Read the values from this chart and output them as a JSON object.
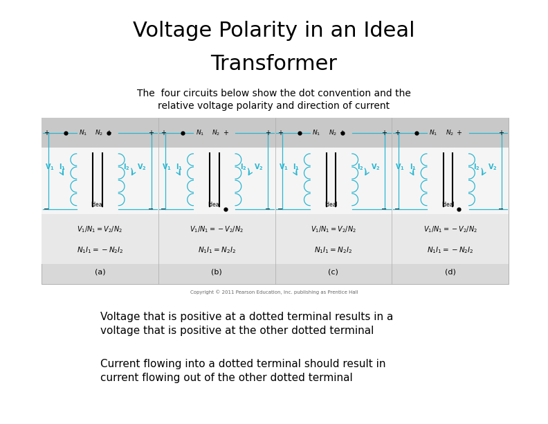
{
  "title_line1": "Voltage Polarity in an Ideal",
  "title_line2": "Transformer",
  "subtitle_line1": "The  four circuits below show the dot convention and the",
  "subtitle_line2": "relative voltage polarity and direction of current",
  "bullet1_line1": "Voltage that is positive at a dotted terminal results in a",
  "bullet1_line2": "voltage that is positive at the other dotted terminal",
  "bullet2_line1": "Current flowing into a dotted terminal should result in",
  "bullet2_line2": "current flowing out of the other dotted terminal",
  "copyright": "Copyright © 2011 Pearson Education, Inc. publishing as Prentice Hall",
  "bg_color": "#ffffff",
  "title_color": "#000000",
  "text_color": "#000000",
  "circuit_bg": "#dcdcdc",
  "cyan_color": "#29b6d1",
  "title_fontsize": 22,
  "subtitle_fontsize": 10,
  "bullet_fontsize": 11
}
